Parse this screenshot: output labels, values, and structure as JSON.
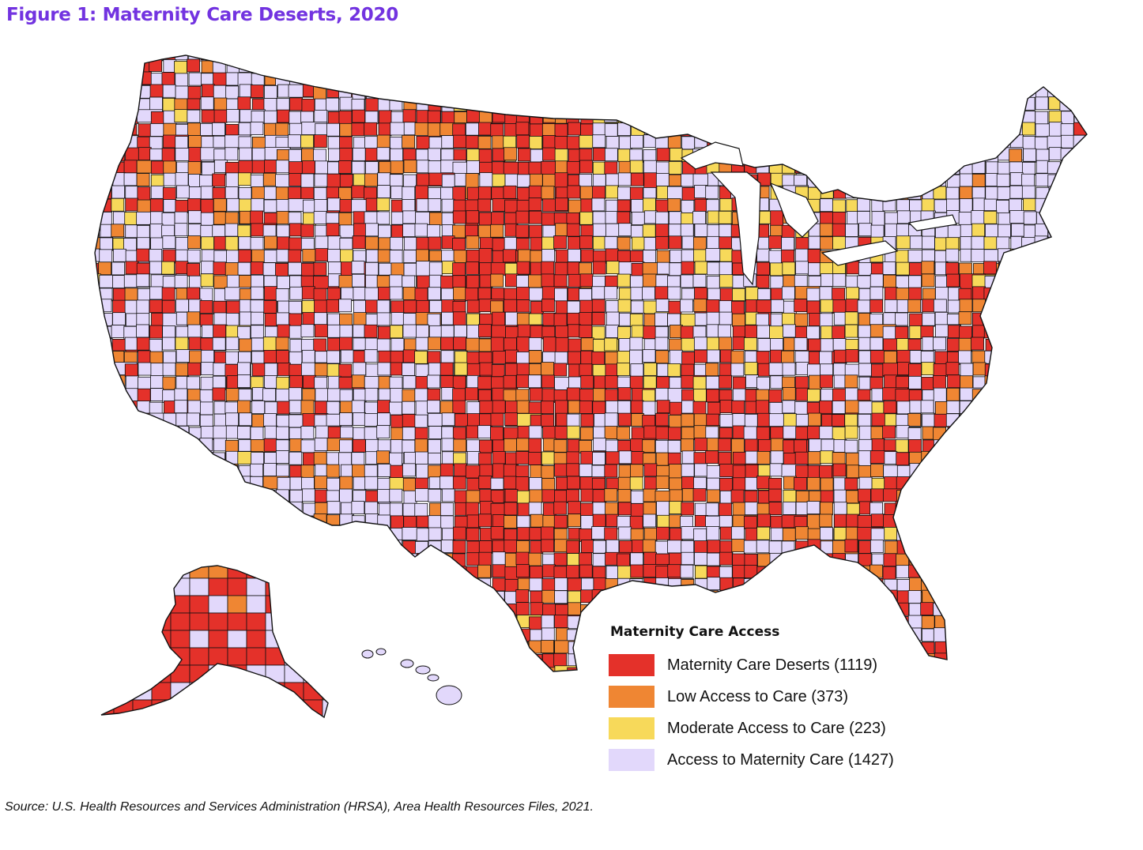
{
  "title": "Figure 1: Maternity Care Deserts, 2020",
  "colors": {
    "title": "#7233e0",
    "desert": "#e4312a",
    "low": "#ef8633",
    "moderate": "#f7d95a",
    "access": "#e2d8fb",
    "border": "#111111"
  },
  "legend": {
    "title": "Maternity Care Access",
    "items": [
      {
        "key": "desert",
        "label": "Maternity Care Deserts (1119)",
        "count": 1119
      },
      {
        "key": "low",
        "label": "Low Access to Care (373)",
        "count": 373
      },
      {
        "key": "moderate",
        "label": "Moderate Access to Care (223)",
        "count": 223
      },
      {
        "key": "access",
        "label": "Access to Maternity Care (1427)",
        "count": 1427
      }
    ]
  },
  "source": "Source: U.S. Health Resources and Services Administration (HRSA), Area Health Resources Files, 2021."
}
